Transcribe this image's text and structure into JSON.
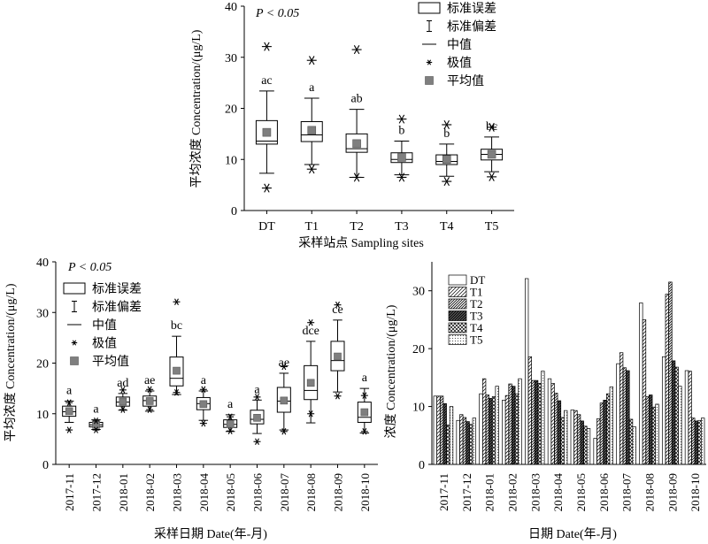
{
  "chart_data": [
    {
      "id": "by_site",
      "type": "box",
      "annotation": "P < 0.05",
      "xlabel": "采样站点 Sampling sites",
      "ylabel": "平均浓度 Concentration/(μg/L)",
      "ylim": [
        0,
        40
      ],
      "yticks": [
        0,
        10,
        20,
        30,
        40
      ],
      "legend": {
        "position": "top-right",
        "items": [
          {
            "symbol": "box",
            "label": "标准误差"
          },
          {
            "symbol": "errorbar",
            "label": "标准偏差"
          },
          {
            "symbol": "line",
            "label": "中值"
          },
          {
            "symbol": "star",
            "label": "极值"
          },
          {
            "symbol": "square",
            "label": "平均值"
          }
        ]
      },
      "categories": [
        "DT",
        "T1",
        "T2",
        "T3",
        "T4",
        "T5"
      ],
      "boxes": [
        {
          "box_low": 13.0,
          "box_high": 17.6,
          "median": 13.6,
          "whisker_low": 7.3,
          "whisker_high": 23.4,
          "mean": 15.3,
          "extreme_low": 4.4,
          "extreme_high": 32.1,
          "letter": "ac"
        },
        {
          "box_low": 13.5,
          "box_high": 17.4,
          "median": 14.8,
          "whisker_low": 9.0,
          "whisker_high": 22.0,
          "mean": 15.7,
          "extreme_low": 8.1,
          "extreme_high": 29.4,
          "letter": "a"
        },
        {
          "box_low": 11.4,
          "box_high": 15.0,
          "median": 12.1,
          "whisker_low": 6.5,
          "whisker_high": 19.8,
          "mean": 13.1,
          "extreme_low": 6.5,
          "extreme_high": 31.5,
          "letter": "ab"
        },
        {
          "box_low": 9.4,
          "box_high": 11.3,
          "median": 10.0,
          "whisker_low": 7.0,
          "whisker_high": 13.6,
          "mean": 10.4,
          "extreme_low": 6.5,
          "extreme_high": 17.9,
          "letter": "b"
        },
        {
          "box_low": 9.0,
          "box_high": 10.9,
          "median": 9.6,
          "whisker_low": 6.7,
          "whisker_high": 13.0,
          "mean": 10.0,
          "extreme_low": 5.7,
          "extreme_high": 16.8,
          "letter": "b"
        },
        {
          "box_low": 9.9,
          "box_high": 12.0,
          "median": 11.0,
          "whisker_low": 7.6,
          "whisker_high": 14.4,
          "mean": 11.0,
          "extreme_low": 6.6,
          "extreme_high": 16.3,
          "letter": "bc"
        }
      ]
    },
    {
      "id": "by_date_box",
      "type": "box",
      "annotation": "P < 0.05",
      "xlabel": "采样日期 Date(年-月)",
      "ylabel": "平均浓度 Concentration/(μg/L)",
      "ylim": [
        0,
        40
      ],
      "yticks": [
        0,
        10,
        20,
        30,
        40
      ],
      "legend": {
        "position": "top-left",
        "items": [
          {
            "symbol": "box",
            "label": "标准误差"
          },
          {
            "symbol": "errorbar",
            "label": "标准偏差"
          },
          {
            "symbol": "line",
            "label": "中值"
          },
          {
            "symbol": "star",
            "label": "极值"
          },
          {
            "symbol": "square",
            "label": "平均值"
          }
        ]
      },
      "categories": [
        "2017-11",
        "2017-12",
        "2018-01",
        "2018-02",
        "2018-03",
        "2018-04",
        "2018-05",
        "2018-06",
        "2018-07",
        "2018-08",
        "2018-09",
        "2018-10"
      ],
      "boxes": [
        {
          "box_low": 9.5,
          "box_high": 11.5,
          "median": 10.4,
          "whisker_low": 8.3,
          "whisker_high": 12.5,
          "mean": 10.5,
          "extreme_low": 6.8,
          "extreme_high": 12.2,
          "letter": "a"
        },
        {
          "box_low": 7.4,
          "box_high": 8.3,
          "median": 7.8,
          "whisker_low": 6.9,
          "whisker_high": 8.8,
          "mean": 7.8,
          "extreme_low": 6.8,
          "extreme_high": 8.6,
          "letter": "a"
        },
        {
          "box_low": 11.5,
          "box_high": 13.3,
          "median": 12.3,
          "whisker_low": 10.7,
          "whisker_high": 14.0,
          "mean": 12.4,
          "extreme_low": 10.8,
          "extreme_high": 14.7,
          "letter": "ad"
        },
        {
          "box_low": 11.5,
          "box_high": 13.5,
          "median": 12.6,
          "whisker_low": 10.5,
          "whisker_high": 14.5,
          "mean": 12.5,
          "extreme_low": 10.8,
          "extreme_high": 14.8,
          "letter": "ae"
        },
        {
          "box_low": 15.5,
          "box_high": 21.2,
          "median": 17.0,
          "whisker_low": 13.8,
          "whisker_high": 25.3,
          "mean": 18.5,
          "extreme_low": 14.2,
          "extreme_high": 32.1,
          "letter": "bc"
        },
        {
          "box_low": 10.8,
          "box_high": 13.2,
          "median": 12.0,
          "whisker_low": 8.7,
          "whisker_high": 14.5,
          "mean": 11.9,
          "extreme_low": 8.1,
          "extreme_high": 14.8,
          "letter": "a"
        },
        {
          "box_low": 7.3,
          "box_high": 8.8,
          "median": 7.9,
          "whisker_low": 6.5,
          "whisker_high": 9.8,
          "mean": 8.0,
          "extreme_low": 6.6,
          "extreme_high": 9.4,
          "letter": "a"
        },
        {
          "box_low": 8.0,
          "box_high": 10.7,
          "median": 8.9,
          "whisker_low": 6.1,
          "whisker_high": 12.7,
          "mean": 9.2,
          "extreme_low": 4.5,
          "extreme_high": 13.3,
          "letter": "a"
        },
        {
          "box_low": 10.3,
          "box_high": 15.2,
          "median": 12.5,
          "whisker_low": 6.8,
          "whisker_high": 18.0,
          "mean": 12.6,
          "extreme_low": 6.5,
          "extreme_high": 19.3,
          "letter": "ae"
        },
        {
          "box_low": 12.8,
          "box_high": 19.5,
          "median": 14.6,
          "whisker_low": 8.2,
          "whisker_high": 24.3,
          "mean": 16.1,
          "extreme_low": 10.0,
          "extreme_high": 28.0,
          "letter": "dce"
        },
        {
          "box_low": 18.5,
          "box_high": 24.3,
          "median": 20.5,
          "whisker_low": 14.3,
          "whisker_high": 28.5,
          "mean": 21.3,
          "extreme_low": 13.5,
          "extreme_high": 31.5,
          "letter": "ce"
        },
        {
          "box_low": 8.3,
          "box_high": 12.3,
          "median": 9.3,
          "whisker_low": 6.2,
          "whisker_high": 15.0,
          "mean": 10.3,
          "extreme_low": 6.5,
          "extreme_high": 13.6,
          "letter": "a"
        }
      ]
    },
    {
      "id": "by_date_bar",
      "type": "bar",
      "xlabel": "日期 Date(年-月)",
      "ylabel": "浓度 Concentration/(μg/L)",
      "ylim": [
        0,
        35
      ],
      "yticks": [
        0,
        10,
        20,
        30
      ],
      "legend": {
        "position": "top-left"
      },
      "categories": [
        "2017-11",
        "2017-12",
        "2018-01",
        "2018-02",
        "2018-03",
        "2018-04",
        "2018-05",
        "2018-06",
        "2018-07",
        "2018-08",
        "2018-09",
        "2018-10"
      ],
      "series": [
        {
          "name": "DT",
          "pattern": "empty",
          "values": [
            11.8,
            7.6,
            12.2,
            11.1,
            32.1,
            14.8,
            9.4,
            4.5,
            17.4,
            27.9,
            18.6,
            16.2
          ]
        },
        {
          "name": "T1",
          "pattern": "diag",
          "values": [
            11.8,
            8.6,
            14.8,
            11.9,
            18.6,
            14.0,
            9.3,
            7.9,
            19.3,
            25.0,
            29.4,
            16.1
          ]
        },
        {
          "name": "T2",
          "pattern": "diag-dense",
          "values": [
            11.8,
            8.1,
            12.0,
            13.9,
            14.5,
            12.3,
            8.6,
            10.6,
            16.7,
            11.7,
            31.5,
            8.0
          ]
        },
        {
          "name": "T3",
          "pattern": "diag-heavy",
          "values": [
            10.5,
            7.4,
            11.4,
            13.5,
            14.5,
            11.0,
            7.5,
            11.1,
            16.2,
            12.0,
            17.9,
            7.5
          ]
        },
        {
          "name": "T4",
          "pattern": "cross",
          "values": [
            6.8,
            6.9,
            11.7,
            12.2,
            14.0,
            8.1,
            6.6,
            12.2,
            7.8,
            9.9,
            16.8,
            7.6
          ]
        },
        {
          "name": "T5",
          "pattern": "dots",
          "values": [
            10.0,
            8.0,
            13.5,
            14.8,
            16.1,
            9.3,
            6.2,
            13.4,
            6.5,
            10.4,
            13.5,
            8.0
          ]
        }
      ]
    }
  ]
}
